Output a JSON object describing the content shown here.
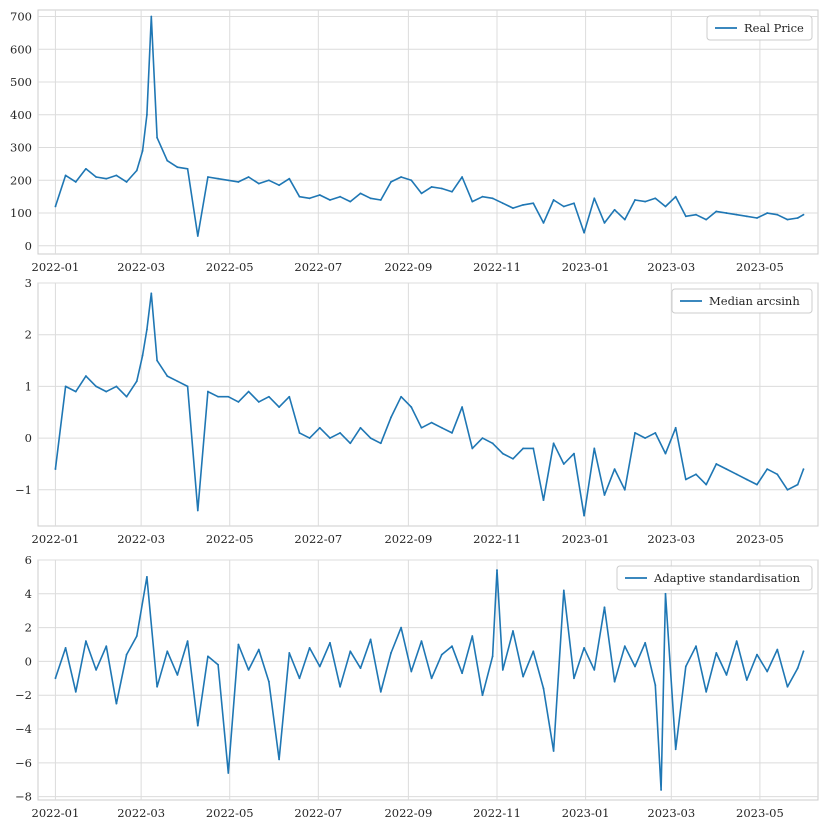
{
  "chart_data": [
    {
      "type": "line",
      "title": "",
      "xlabel": "",
      "ylabel": "",
      "grid": true,
      "legend_position": "top-right",
      "color": "#1f77b4",
      "xlim": [
        "2021-12-20",
        "2023-06-10"
      ],
      "ylim": [
        -25,
        720
      ],
      "y_ticks": [
        0,
        100,
        200,
        300,
        400,
        500,
        600,
        700
      ],
      "x_ticks": [
        "2022-01",
        "2022-03",
        "2022-05",
        "2022-07",
        "2022-09",
        "2022-11",
        "2023-01",
        "2023-03",
        "2023-05"
      ],
      "series": [
        {
          "name": "Real Price",
          "x": [
            "2022-01-01",
            "2022-01-08",
            "2022-01-15",
            "2022-01-22",
            "2022-01-29",
            "2022-02-05",
            "2022-02-12",
            "2022-02-19",
            "2022-02-26",
            "2022-03-02",
            "2022-03-05",
            "2022-03-08",
            "2022-03-12",
            "2022-03-19",
            "2022-03-26",
            "2022-04-02",
            "2022-04-09",
            "2022-04-16",
            "2022-04-23",
            "2022-04-30",
            "2022-05-07",
            "2022-05-14",
            "2022-05-21",
            "2022-05-28",
            "2022-06-04",
            "2022-06-11",
            "2022-06-18",
            "2022-06-25",
            "2022-07-02",
            "2022-07-09",
            "2022-07-16",
            "2022-07-23",
            "2022-07-30",
            "2022-08-06",
            "2022-08-13",
            "2022-08-20",
            "2022-08-27",
            "2022-09-03",
            "2022-09-10",
            "2022-09-17",
            "2022-09-24",
            "2022-10-01",
            "2022-10-08",
            "2022-10-15",
            "2022-10-22",
            "2022-10-29",
            "2022-11-05",
            "2022-11-12",
            "2022-11-19",
            "2022-11-26",
            "2022-12-03",
            "2022-12-10",
            "2022-12-17",
            "2022-12-24",
            "2022-12-31",
            "2023-01-07",
            "2023-01-14",
            "2023-01-21",
            "2023-01-28",
            "2023-02-04",
            "2023-02-11",
            "2023-02-18",
            "2023-02-25",
            "2023-03-04",
            "2023-03-11",
            "2023-03-18",
            "2023-03-25",
            "2023-04-01",
            "2023-04-08",
            "2023-04-15",
            "2023-04-22",
            "2023-04-29",
            "2023-05-06",
            "2023-05-13",
            "2023-05-20",
            "2023-05-27",
            "2023-05-31"
          ],
          "values": [
            120,
            215,
            195,
            235,
            210,
            205,
            215,
            195,
            230,
            290,
            400,
            700,
            330,
            260,
            240,
            235,
            30,
            210,
            205,
            200,
            195,
            210,
            190,
            200,
            185,
            205,
            150,
            145,
            155,
            140,
            150,
            135,
            160,
            145,
            140,
            195,
            210,
            200,
            160,
            180,
            175,
            165,
            210,
            135,
            150,
            145,
            130,
            115,
            125,
            130,
            70,
            140,
            120,
            130,
            40,
            145,
            70,
            110,
            80,
            140,
            135,
            145,
            120,
            150,
            90,
            95,
            80,
            105,
            100,
            95,
            90,
            85,
            100,
            95,
            80,
            85,
            95
          ]
        }
      ]
    },
    {
      "type": "line",
      "title": "",
      "xlabel": "",
      "ylabel": "",
      "grid": true,
      "legend_position": "top-right",
      "color": "#1f77b4",
      "xlim": [
        "2021-12-20",
        "2023-06-10"
      ],
      "ylim": [
        -1.7,
        3.0
      ],
      "y_ticks": [
        -1,
        0,
        1,
        2,
        3
      ],
      "x_ticks": [
        "2022-01",
        "2022-03",
        "2022-05",
        "2022-07",
        "2022-09",
        "2022-11",
        "2023-01",
        "2023-03",
        "2023-05"
      ],
      "series": [
        {
          "name": "Median arcsinh",
          "x": [
            "2022-01-01",
            "2022-01-08",
            "2022-01-15",
            "2022-01-22",
            "2022-01-29",
            "2022-02-05",
            "2022-02-12",
            "2022-02-19",
            "2022-02-26",
            "2022-03-02",
            "2022-03-05",
            "2022-03-08",
            "2022-03-12",
            "2022-03-19",
            "2022-03-26",
            "2022-04-02",
            "2022-04-09",
            "2022-04-16",
            "2022-04-23",
            "2022-04-30",
            "2022-05-07",
            "2022-05-14",
            "2022-05-21",
            "2022-05-28",
            "2022-06-04",
            "2022-06-11",
            "2022-06-18",
            "2022-06-25",
            "2022-07-02",
            "2022-07-09",
            "2022-07-16",
            "2022-07-23",
            "2022-07-30",
            "2022-08-06",
            "2022-08-13",
            "2022-08-20",
            "2022-08-27",
            "2022-09-03",
            "2022-09-10",
            "2022-09-17",
            "2022-09-24",
            "2022-10-01",
            "2022-10-08",
            "2022-10-15",
            "2022-10-22",
            "2022-10-29",
            "2022-11-05",
            "2022-11-12",
            "2022-11-19",
            "2022-11-26",
            "2022-12-03",
            "2022-12-10",
            "2022-12-17",
            "2022-12-24",
            "2022-12-31",
            "2023-01-07",
            "2023-01-14",
            "2023-01-21",
            "2023-01-28",
            "2023-02-04",
            "2023-02-11",
            "2023-02-18",
            "2023-02-25",
            "2023-03-04",
            "2023-03-11",
            "2023-03-18",
            "2023-03-25",
            "2023-04-01",
            "2023-04-08",
            "2023-04-15",
            "2023-04-22",
            "2023-04-29",
            "2023-05-06",
            "2023-05-13",
            "2023-05-20",
            "2023-05-27",
            "2023-05-31"
          ],
          "values": [
            -0.6,
            1.0,
            0.9,
            1.2,
            1.0,
            0.9,
            1.0,
            0.8,
            1.1,
            1.6,
            2.1,
            2.8,
            1.5,
            1.2,
            1.1,
            1.0,
            -1.4,
            0.9,
            0.8,
            0.8,
            0.7,
            0.9,
            0.7,
            0.8,
            0.6,
            0.8,
            0.1,
            0.0,
            0.2,
            0.0,
            0.1,
            -0.1,
            0.2,
            0.0,
            -0.1,
            0.4,
            0.8,
            0.6,
            0.2,
            0.3,
            0.2,
            0.1,
            0.6,
            -0.2,
            0.0,
            -0.1,
            -0.3,
            -0.4,
            -0.2,
            -0.2,
            -1.2,
            -0.1,
            -0.5,
            -0.3,
            -1.5,
            -0.2,
            -1.1,
            -0.6,
            -1.0,
            0.1,
            0.0,
            0.1,
            -0.3,
            0.2,
            -0.8,
            -0.7,
            -0.9,
            -0.5,
            -0.6,
            -0.7,
            -0.8,
            -0.9,
            -0.6,
            -0.7,
            -1.0,
            -0.9,
            -0.6
          ]
        }
      ]
    },
    {
      "type": "line",
      "title": "",
      "xlabel": "",
      "ylabel": "",
      "grid": true,
      "legend_position": "top-right",
      "color": "#1f77b4",
      "xlim": [
        "2021-12-20",
        "2023-06-10"
      ],
      "ylim": [
        -8.2,
        6.0
      ],
      "y_ticks": [
        -8,
        -6,
        -4,
        -2,
        0,
        2,
        4,
        6
      ],
      "x_ticks": [
        "2022-01",
        "2022-03",
        "2022-05",
        "2022-07",
        "2022-09",
        "2022-11",
        "2023-01",
        "2023-03",
        "2023-05"
      ],
      "series": [
        {
          "name": "Adaptive standardisation",
          "x": [
            "2022-01-01",
            "2022-01-08",
            "2022-01-15",
            "2022-01-22",
            "2022-01-29",
            "2022-02-05",
            "2022-02-12",
            "2022-02-19",
            "2022-02-26",
            "2022-03-05",
            "2022-03-12",
            "2022-03-19",
            "2022-03-26",
            "2022-04-02",
            "2022-04-09",
            "2022-04-16",
            "2022-04-23",
            "2022-04-30",
            "2022-05-07",
            "2022-05-14",
            "2022-05-21",
            "2022-05-28",
            "2022-06-04",
            "2022-06-11",
            "2022-06-18",
            "2022-06-25",
            "2022-07-02",
            "2022-07-09",
            "2022-07-16",
            "2022-07-23",
            "2022-07-30",
            "2022-08-06",
            "2022-08-13",
            "2022-08-20",
            "2022-08-27",
            "2022-09-03",
            "2022-09-10",
            "2022-09-17",
            "2022-09-24",
            "2022-10-01",
            "2022-10-08",
            "2022-10-15",
            "2022-10-22",
            "2022-10-29",
            "2022-11-01",
            "2022-11-05",
            "2022-11-12",
            "2022-11-19",
            "2022-11-26",
            "2022-12-03",
            "2022-12-10",
            "2022-12-17",
            "2022-12-24",
            "2022-12-31",
            "2023-01-07",
            "2023-01-14",
            "2023-01-21",
            "2023-01-28",
            "2023-02-04",
            "2023-02-11",
            "2023-02-18",
            "2023-02-22",
            "2023-02-25",
            "2023-03-04",
            "2023-03-11",
            "2023-03-18",
            "2023-03-25",
            "2023-04-01",
            "2023-04-08",
            "2023-04-15",
            "2023-04-22",
            "2023-04-29",
            "2023-05-06",
            "2023-05-13",
            "2023-05-20",
            "2023-05-27",
            "2023-05-31"
          ],
          "values": [
            -1.0,
            0.8,
            -1.8,
            1.2,
            -0.5,
            0.9,
            -2.5,
            0.4,
            1.5,
            5.0,
            -1.5,
            0.6,
            -0.8,
            1.2,
            -3.8,
            0.3,
            -0.2,
            -6.6,
            1.0,
            -0.5,
            0.7,
            -1.2,
            -5.8,
            0.5,
            -1.0,
            0.8,
            -0.3,
            1.1,
            -1.5,
            0.6,
            -0.4,
            1.3,
            -1.8,
            0.5,
            2.0,
            -0.6,
            1.2,
            -1.0,
            0.4,
            0.9,
            -0.7,
            1.5,
            -2.0,
            0.3,
            5.4,
            -0.5,
            1.8,
            -0.9,
            0.6,
            -1.6,
            -5.3,
            4.2,
            -1.0,
            0.8,
            -0.5,
            3.2,
            -1.2,
            0.9,
            -0.3,
            1.1,
            -1.4,
            -7.6,
            4.0,
            -5.2,
            -0.3,
            0.9,
            -1.8,
            0.5,
            -0.8,
            1.2,
            -1.1,
            0.4,
            -0.6,
            0.7,
            -1.5,
            -0.4,
            0.6
          ]
        }
      ]
    }
  ]
}
